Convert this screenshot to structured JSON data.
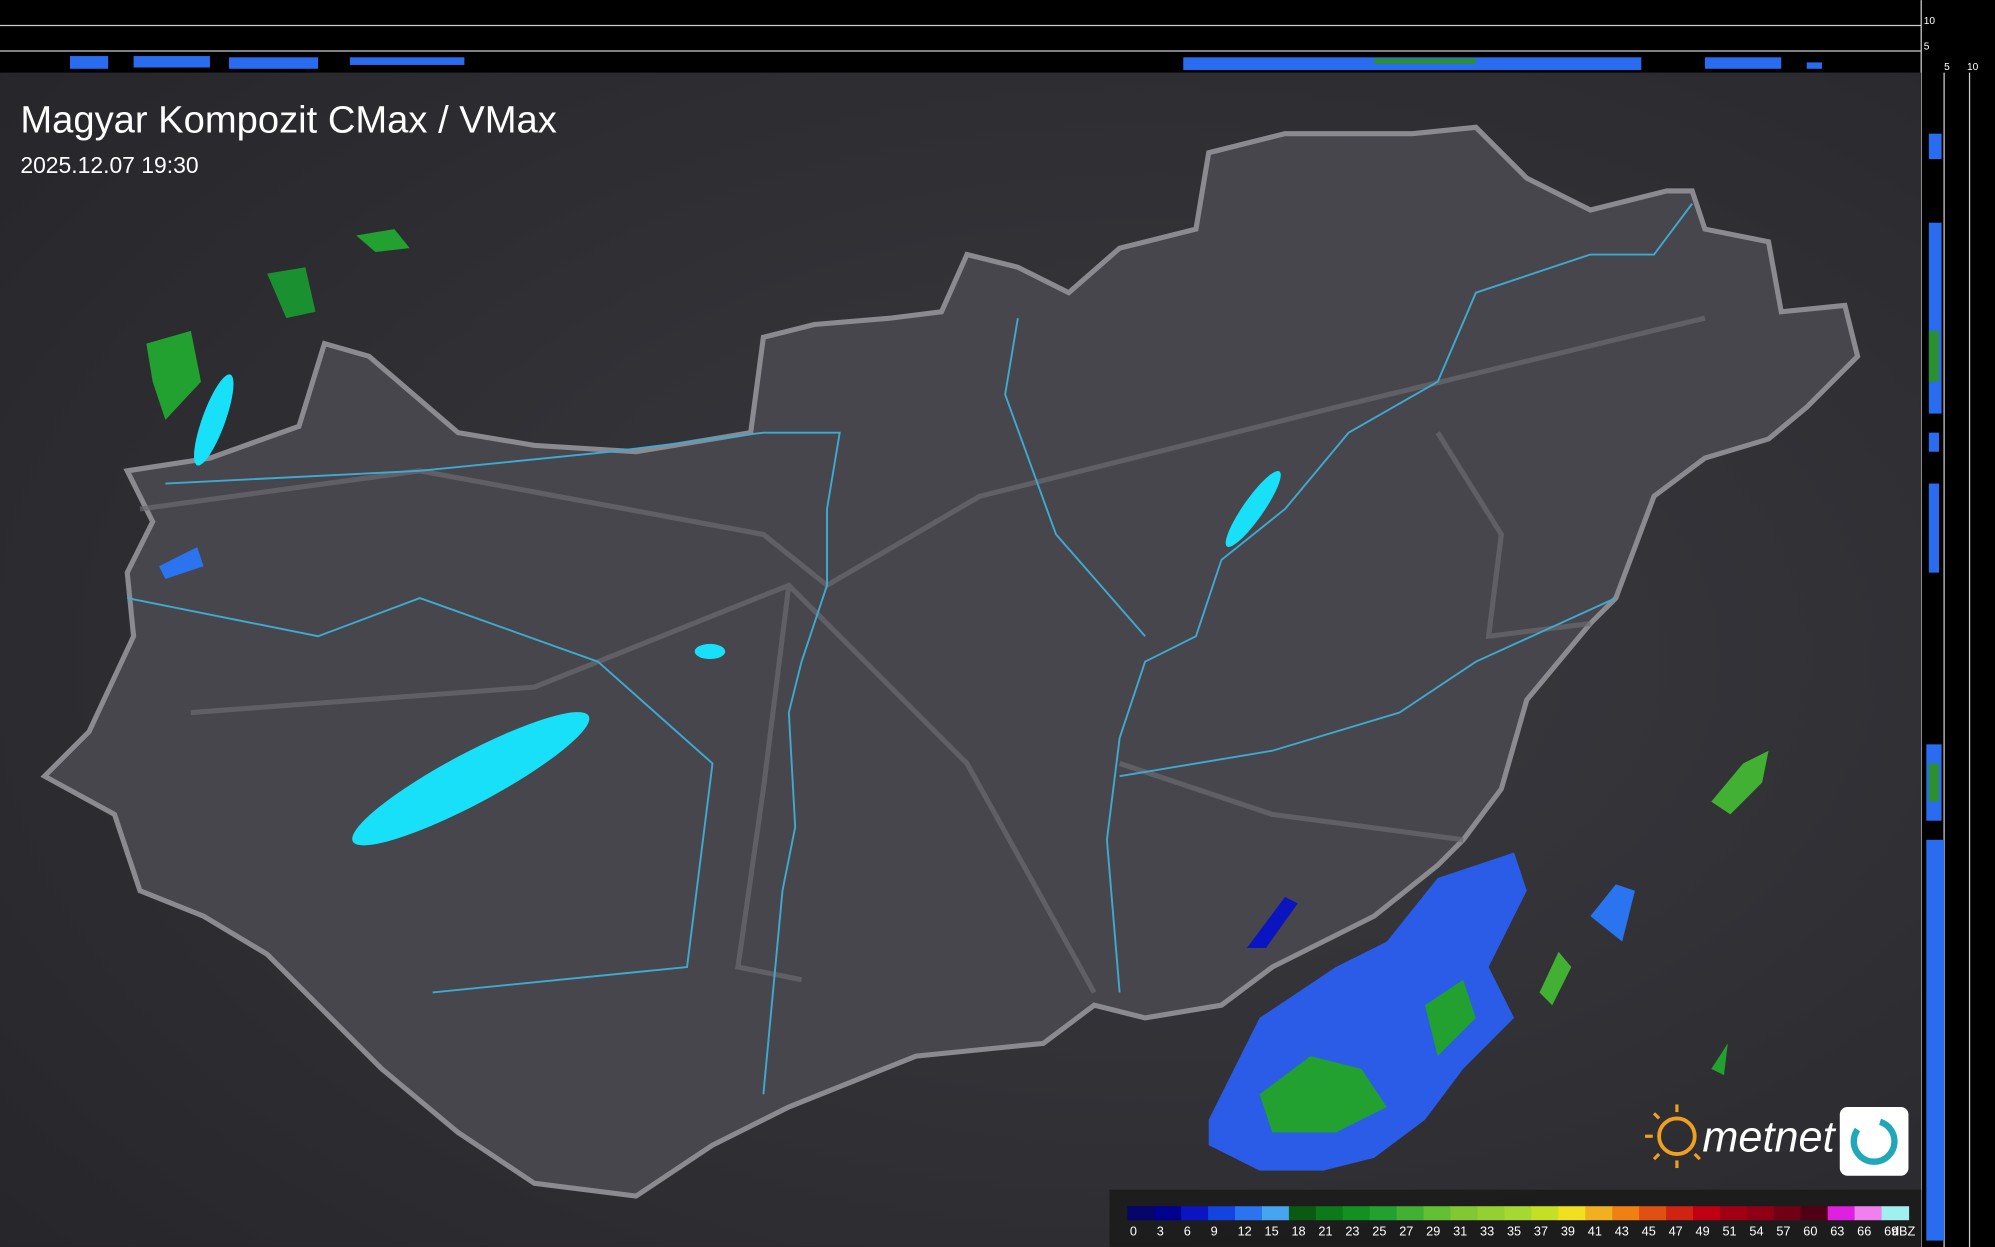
{
  "header": {
    "title": "Magyar Kompozit CMax / VMax",
    "timestamp": "2025.12.07 19:30"
  },
  "side_scale": {
    "vertical_ticks": [
      10,
      5
    ],
    "horizontal_ticks": [
      5,
      10
    ]
  },
  "legend": {
    "unit": "dBZ",
    "values": [
      0,
      3,
      6,
      9,
      12,
      15,
      18,
      21,
      23,
      25,
      27,
      29,
      31,
      33,
      35,
      37,
      39,
      41,
      43,
      45,
      47,
      49,
      51,
      54,
      57,
      60,
      63,
      66,
      69
    ],
    "colors": [
      "#06066a",
      "#00008f",
      "#0a14c0",
      "#1444e0",
      "#2a74f0",
      "#46a4f0",
      "#0a5a12",
      "#0c7a1a",
      "#129022",
      "#22a030",
      "#42b032",
      "#62c032",
      "#82c832",
      "#94d032",
      "#a6d832",
      "#c4e024",
      "#f0e020",
      "#f0b020",
      "#f08012",
      "#e05012",
      "#d02412",
      "#c00012",
      "#a00012",
      "#900014",
      "#700014",
      "#500014",
      "#e020e0",
      "#f080f0",
      "#a0f0f0"
    ]
  },
  "logo": {
    "text": "metnet"
  }
}
